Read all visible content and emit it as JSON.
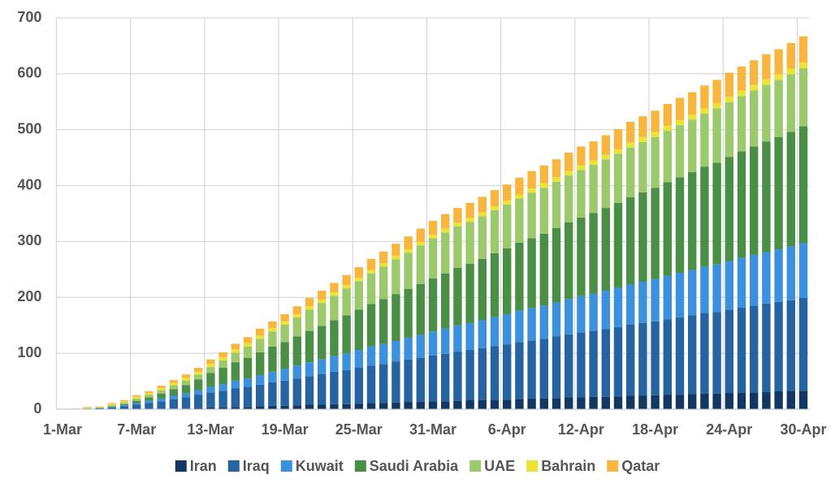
{
  "chart_data": {
    "type": "stacked-bar",
    "categories": [
      "1-Mar",
      null,
      null,
      null,
      null,
      null,
      "7-Mar",
      null,
      null,
      null,
      null,
      null,
      "13-Mar",
      null,
      null,
      null,
      null,
      null,
      "19-Mar",
      null,
      null,
      null,
      null,
      null,
      "25-Mar",
      null,
      null,
      null,
      null,
      null,
      "31-Mar",
      null,
      null,
      null,
      null,
      null,
      "6-Apr",
      null,
      null,
      null,
      null,
      null,
      "12-Apr",
      null,
      null,
      null,
      null,
      null,
      "18-Apr",
      null,
      null,
      null,
      null,
      null,
      "24-Apr",
      null,
      null,
      null,
      null,
      null,
      "30-Apr"
    ],
    "series": [
      {
        "name": "Iran",
        "color": "#123761",
        "values": [
          0,
          0,
          0,
          0,
          0,
          0,
          0,
          0,
          0,
          1,
          1,
          2,
          3,
          3,
          4,
          4,
          5,
          6,
          6,
          7,
          8,
          8,
          9,
          9,
          10,
          11,
          11,
          12,
          13,
          13,
          14,
          14,
          15,
          16,
          16,
          17,
          17,
          18,
          19,
          19,
          20,
          21,
          21,
          22,
          22,
          23,
          24,
          24,
          25,
          26,
          26,
          27,
          28,
          28,
          29,
          30,
          30,
          31,
          32,
          32,
          33
        ]
      },
      {
        "name": "Iraq",
        "color": "#2563a1",
        "values": [
          0,
          0,
          1,
          2,
          3,
          5,
          8,
          11,
          14,
          17,
          20,
          24,
          27,
          30,
          33,
          36,
          39,
          42,
          45,
          48,
          51,
          55,
          58,
          61,
          64,
          67,
          70,
          73,
          76,
          79,
          82,
          85,
          88,
          90,
          93,
          96,
          99,
          102,
          104,
          107,
          110,
          113,
          116,
          118,
          121,
          124,
          127,
          130,
          132,
          135,
          138,
          141,
          144,
          146,
          149,
          152,
          155,
          158,
          160,
          163,
          166
        ]
      },
      {
        "name": "Kuwait",
        "color": "#3b91dd",
        "values": [
          0,
          0,
          0,
          0,
          1,
          2,
          3,
          4,
          5,
          6,
          7,
          8,
          10,
          12,
          14,
          15,
          17,
          19,
          21,
          23,
          25,
          26,
          28,
          30,
          32,
          34,
          36,
          37,
          39,
          41,
          43,
          45,
          47,
          48,
          50,
          52,
          54,
          56,
          58,
          59,
          61,
          63,
          65,
          67,
          69,
          70,
          72,
          74,
          76,
          78,
          80,
          81,
          83,
          85,
          87,
          89,
          91,
          92,
          94,
          96,
          98
        ]
      },
      {
        "name": "Saudi Arabia",
        "color": "#4b8f47",
        "values": [
          0,
          0,
          0,
          0,
          1,
          2,
          4,
          6,
          9,
          12,
          15,
          19,
          25,
          29,
          33,
          37,
          41,
          45,
          48,
          52,
          56,
          60,
          64,
          68,
          72,
          76,
          80,
          84,
          87,
          91,
          95,
          99,
          103,
          106,
          110,
          114,
          118,
          122,
          125,
          129,
          133,
          137,
          141,
          144,
          148,
          152,
          156,
          160,
          163,
          167,
          171,
          175,
          179,
          182,
          186,
          190,
          194,
          198,
          201,
          205,
          209
        ]
      },
      {
        "name": "UAE",
        "color": "#9bc96b",
        "values": [
          0,
          0,
          1,
          1,
          2,
          3,
          4,
          5,
          6,
          7,
          8,
          9,
          10,
          13,
          17,
          20,
          24,
          27,
          31,
          34,
          38,
          41,
          44,
          48,
          51,
          55,
          58,
          62,
          65,
          69,
          72,
          73,
          74,
          75,
          76,
          77,
          78,
          79,
          81,
          82,
          83,
          84,
          85,
          86,
          87,
          88,
          89,
          90,
          91,
          92,
          93,
          94,
          95,
          97,
          98,
          99,
          100,
          101,
          102,
          103,
          104
        ]
      },
      {
        "name": "Bahrain",
        "color": "#ebe436",
        "values": [
          0,
          0,
          1,
          1,
          2,
          2,
          3,
          3,
          4,
          4,
          5,
          5,
          6,
          6,
          6,
          6,
          6,
          6,
          6,
          6,
          6,
          6,
          6,
          6,
          6,
          6,
          6,
          6,
          6,
          6,
          6,
          7,
          7,
          7,
          7,
          7,
          7,
          7,
          8,
          8,
          8,
          8,
          8,
          8,
          8,
          8,
          9,
          9,
          9,
          9,
          9,
          9,
          9,
          9,
          10,
          10,
          10,
          10,
          10,
          10,
          10
        ]
      },
      {
        "name": "Qatar",
        "color": "#f8b63e",
        "values": [
          0,
          1,
          1,
          1,
          2,
          2,
          3,
          3,
          4,
          5,
          6,
          7,
          8,
          9,
          10,
          11,
          12,
          12,
          13,
          14,
          15,
          16,
          17,
          18,
          19,
          20,
          21,
          22,
          23,
          24,
          25,
          26,
          26,
          27,
          28,
          29,
          29,
          30,
          31,
          32,
          32,
          33,
          34,
          34,
          35,
          36,
          37,
          37,
          38,
          39,
          40,
          40,
          41,
          42,
          43,
          43,
          44,
          45,
          45,
          46,
          47
        ]
      }
    ],
    "ylim": [
      0,
      700
    ],
    "yticks": [
      0,
      100,
      200,
      300,
      400,
      500,
      600,
      700
    ],
    "grid": true
  }
}
